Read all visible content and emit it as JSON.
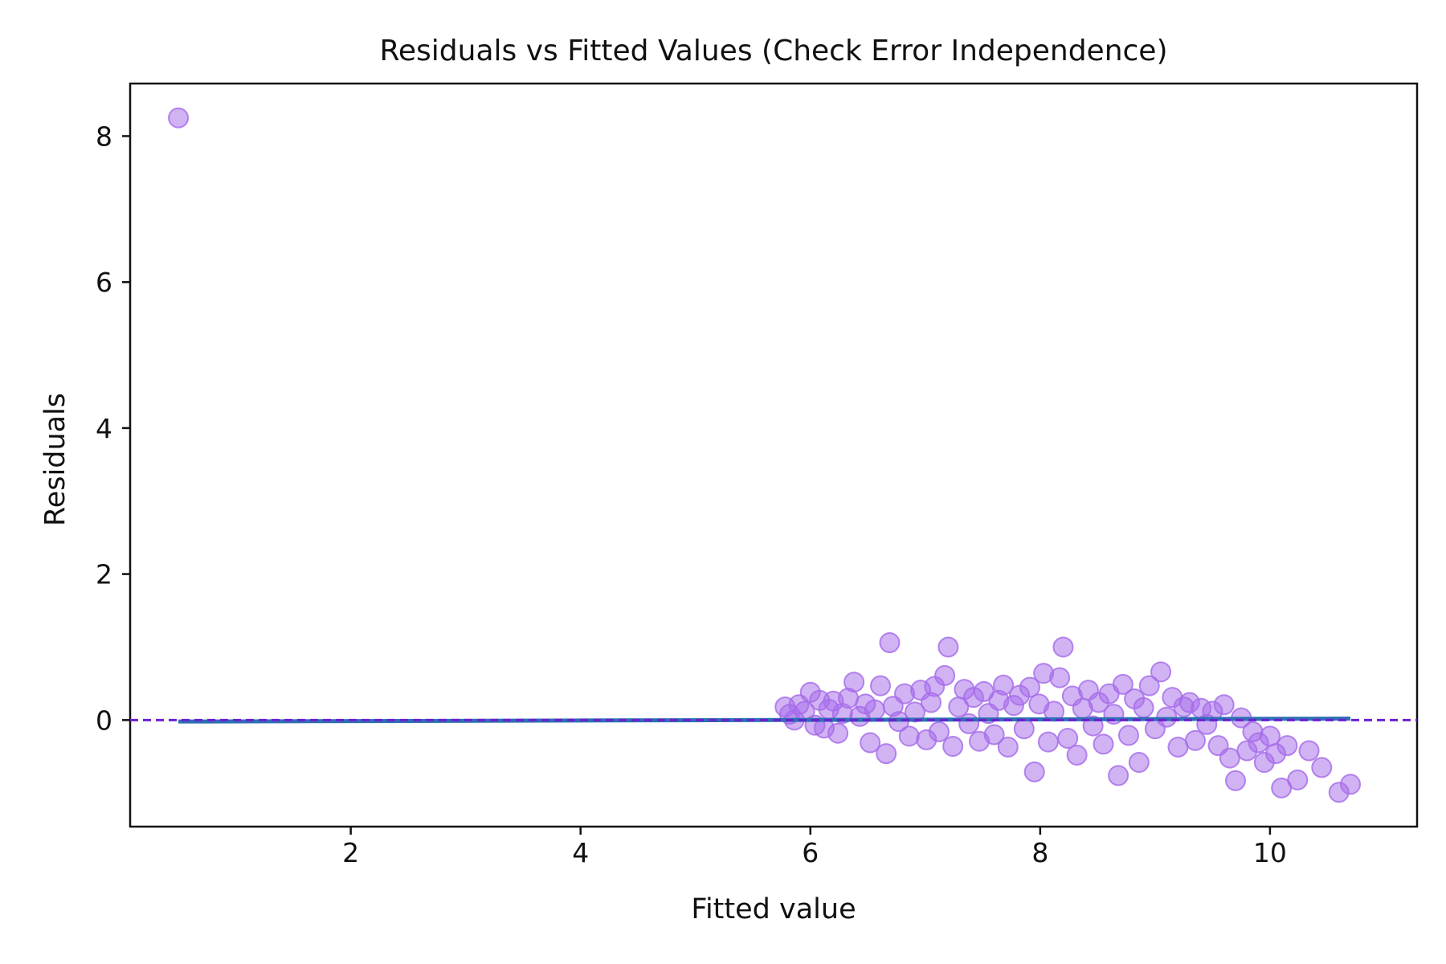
{
  "chart_data": {
    "type": "scatter",
    "title": "Residuals vs Fitted Values (Check Error Independence)",
    "xlabel": "Fitted value",
    "ylabel": "Residuals",
    "xlim": [
      0.08,
      11.28
    ],
    "ylim": [
      -1.46,
      8.72
    ],
    "xticks": [
      2,
      4,
      6,
      8,
      10
    ],
    "yticks": [
      0,
      2,
      4,
      6,
      8
    ],
    "grid": false,
    "legend": "none",
    "colors": {
      "points": "#a66de9",
      "reference_line": "#6b1fd1",
      "trend_line": "#2f6fb3"
    },
    "reference_line": {
      "y": 0,
      "style": "dashed"
    },
    "trend_line": {
      "x": [
        0.5,
        10.7
      ],
      "y": [
        -0.02,
        0.02
      ]
    },
    "series": [
      {
        "points": [
          [
            0.5,
            8.25
          ],
          [
            5.78,
            0.18
          ],
          [
            5.82,
            0.08
          ],
          [
            5.86,
            0.0
          ],
          [
            5.9,
            0.21
          ],
          [
            5.95,
            0.12
          ],
          [
            6.0,
            0.38
          ],
          [
            6.04,
            -0.07
          ],
          [
            6.08,
            0.27
          ],
          [
            6.12,
            -0.11
          ],
          [
            6.16,
            0.15
          ],
          [
            6.2,
            0.26
          ],
          [
            6.24,
            -0.18
          ],
          [
            6.28,
            0.09
          ],
          [
            6.33,
            0.3
          ],
          [
            6.38,
            0.52
          ],
          [
            6.43,
            0.05
          ],
          [
            6.48,
            0.22
          ],
          [
            6.52,
            -0.31
          ],
          [
            6.56,
            0.14
          ],
          [
            6.61,
            0.47
          ],
          [
            6.66,
            -0.46
          ],
          [
            6.69,
            1.06
          ],
          [
            6.72,
            0.19
          ],
          [
            6.77,
            -0.02
          ],
          [
            6.82,
            0.36
          ],
          [
            6.86,
            -0.22
          ],
          [
            6.91,
            0.11
          ],
          [
            6.96,
            0.41
          ],
          [
            7.01,
            -0.27
          ],
          [
            7.05,
            0.24
          ],
          [
            7.08,
            0.46
          ],
          [
            7.12,
            -0.16
          ],
          [
            7.17,
            0.61
          ],
          [
            7.2,
            1.0
          ],
          [
            7.24,
            -0.36
          ],
          [
            7.29,
            0.18
          ],
          [
            7.34,
            0.42
          ],
          [
            7.38,
            -0.05
          ],
          [
            7.42,
            0.31
          ],
          [
            7.47,
            -0.29
          ],
          [
            7.51,
            0.39
          ],
          [
            7.55,
            0.09
          ],
          [
            7.6,
            -0.2
          ],
          [
            7.64,
            0.27
          ],
          [
            7.68,
            0.48
          ],
          [
            7.72,
            -0.37
          ],
          [
            7.77,
            0.2
          ],
          [
            7.82,
            0.34
          ],
          [
            7.86,
            -0.12
          ],
          [
            7.91,
            0.45
          ],
          [
            7.95,
            -0.71
          ],
          [
            7.99,
            0.22
          ],
          [
            8.03,
            0.64
          ],
          [
            8.07,
            -0.3
          ],
          [
            8.12,
            0.12
          ],
          [
            8.17,
            0.58
          ],
          [
            8.2,
            1.0
          ],
          [
            8.24,
            -0.25
          ],
          [
            8.28,
            0.33
          ],
          [
            8.32,
            -0.48
          ],
          [
            8.37,
            0.16
          ],
          [
            8.42,
            0.41
          ],
          [
            8.46,
            -0.08
          ],
          [
            8.51,
            0.24
          ],
          [
            8.55,
            -0.33
          ],
          [
            8.6,
            0.36
          ],
          [
            8.64,
            0.08
          ],
          [
            8.68,
            -0.76
          ],
          [
            8.72,
            0.49
          ],
          [
            8.77,
            -0.21
          ],
          [
            8.82,
            0.29
          ],
          [
            8.86,
            -0.58
          ],
          [
            8.9,
            0.17
          ],
          [
            8.95,
            0.47
          ],
          [
            9.0,
            -0.12
          ],
          [
            9.05,
            0.66
          ],
          [
            9.1,
            0.04
          ],
          [
            9.15,
            0.31
          ],
          [
            9.2,
            -0.37
          ],
          [
            9.25,
            0.18
          ],
          [
            9.3,
            0.24
          ],
          [
            9.35,
            -0.28
          ],
          [
            9.4,
            0.16
          ],
          [
            9.45,
            -0.06
          ],
          [
            9.5,
            0.12
          ],
          [
            9.55,
            -0.35
          ],
          [
            9.6,
            0.21
          ],
          [
            9.65,
            -0.52
          ],
          [
            9.7,
            -0.83
          ],
          [
            9.75,
            0.03
          ],
          [
            9.8,
            -0.42
          ],
          [
            9.85,
            -0.16
          ],
          [
            9.9,
            -0.31
          ],
          [
            9.95,
            -0.58
          ],
          [
            10.0,
            -0.22
          ],
          [
            10.05,
            -0.46
          ],
          [
            10.1,
            -0.93
          ],
          [
            10.15,
            -0.35
          ],
          [
            10.24,
            -0.82
          ],
          [
            10.34,
            -0.42
          ],
          [
            10.45,
            -0.65
          ],
          [
            10.6,
            -0.99
          ],
          [
            10.7,
            -0.88
          ]
        ]
      }
    ]
  }
}
